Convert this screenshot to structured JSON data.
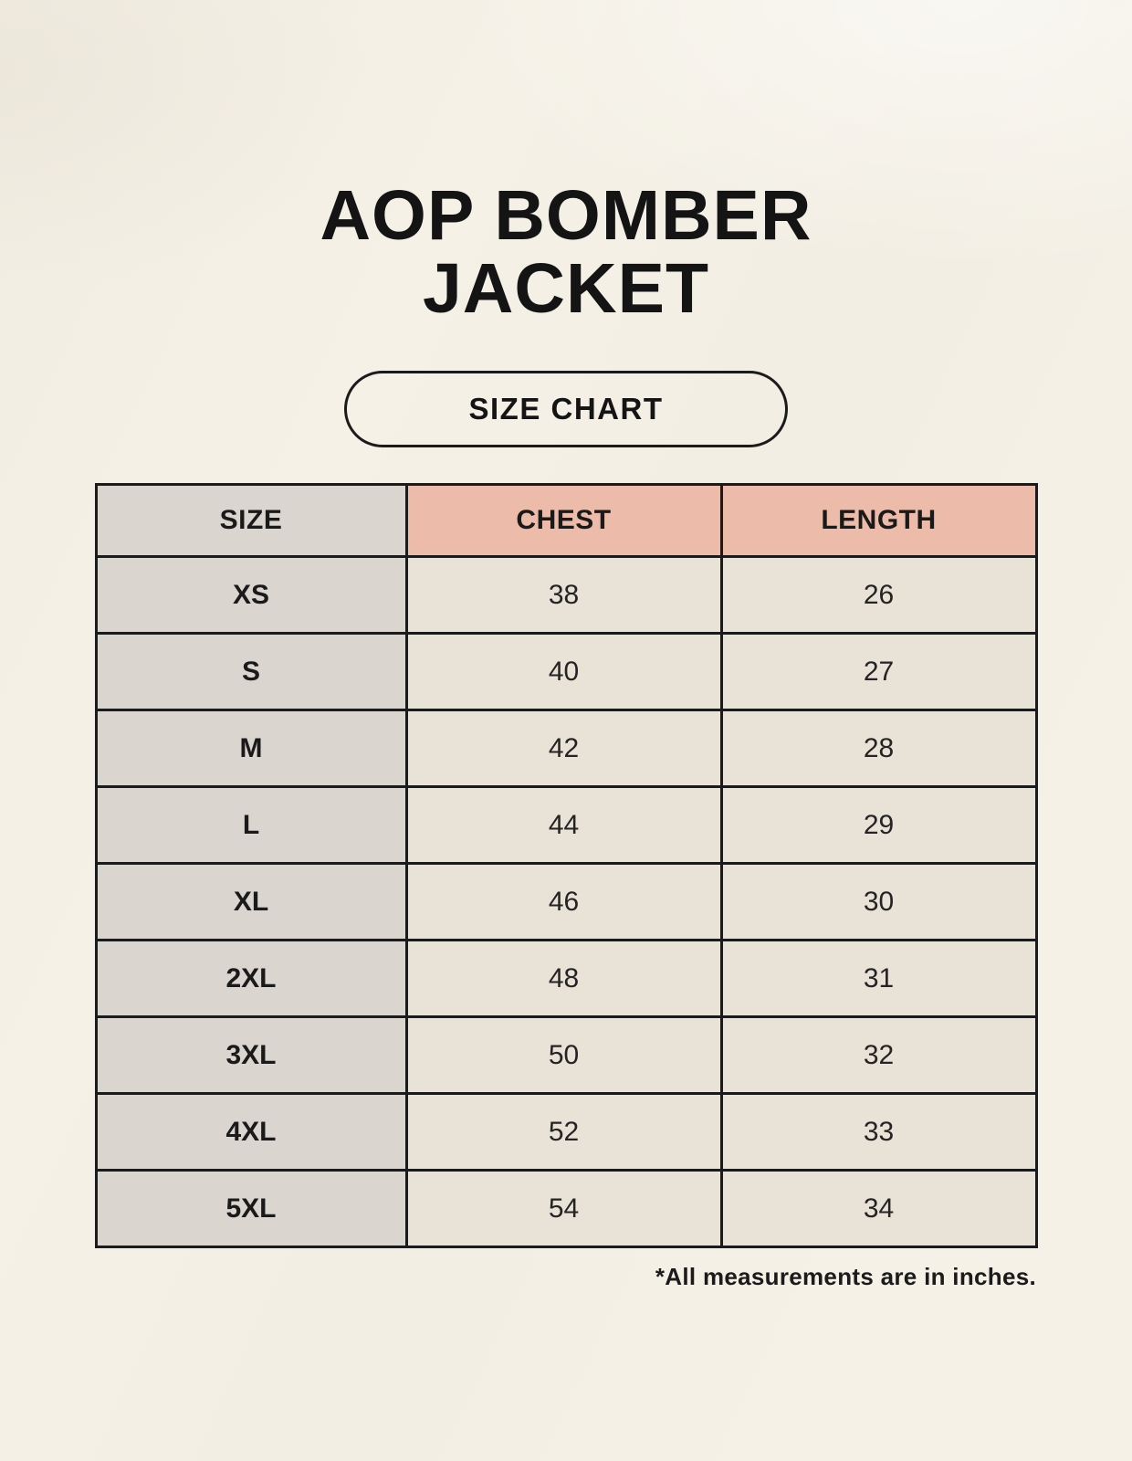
{
  "page": {
    "title_line1": "AOP BOMBER",
    "title_line2": "JACKET",
    "badge_label": "SIZE CHART",
    "footnote": "*All measurements are in inches."
  },
  "colors": {
    "page_background": "#f5f1e7",
    "size_column_bg": "#dbd5cf",
    "measure_header_bg": "#edbbaa",
    "value_cell_bg": "#e9e2d7",
    "border": "#1b1b1b",
    "text": "#141414"
  },
  "chart_data": {
    "type": "table",
    "title": "AOP BOMBER JACKET",
    "subtitle": "SIZE CHART",
    "units_note": "*All measurements are in inches.",
    "columns": [
      "SIZE",
      "CHEST",
      "LENGTH"
    ],
    "rows": [
      [
        "XS",
        "38",
        "26"
      ],
      [
        "S",
        "40",
        "27"
      ],
      [
        "M",
        "42",
        "28"
      ],
      [
        "L",
        "44",
        "29"
      ],
      [
        "XL",
        "46",
        "30"
      ],
      [
        "2XL",
        "48",
        "31"
      ],
      [
        "3XL",
        "50",
        "32"
      ],
      [
        "4XL",
        "52",
        "33"
      ],
      [
        "5XL",
        "54",
        "34"
      ]
    ]
  }
}
